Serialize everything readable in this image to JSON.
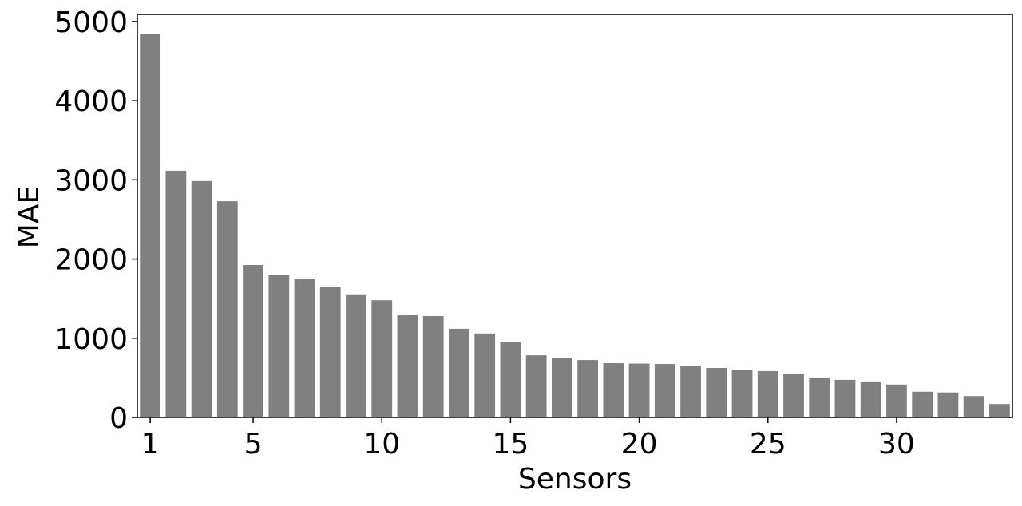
{
  "chart_data": {
    "type": "bar",
    "xlabel": "Sensors",
    "ylabel": "MAE",
    "x": [
      1,
      2,
      3,
      4,
      5,
      6,
      7,
      8,
      9,
      10,
      11,
      12,
      13,
      14,
      15,
      16,
      17,
      18,
      19,
      20,
      21,
      22,
      23,
      24,
      25,
      26,
      27,
      28,
      29,
      30,
      31,
      32,
      33,
      34
    ],
    "values": [
      4840,
      3115,
      2985,
      2730,
      1925,
      1795,
      1745,
      1645,
      1555,
      1480,
      1290,
      1280,
      1120,
      1060,
      950,
      785,
      755,
      725,
      685,
      680,
      675,
      655,
      625,
      605,
      585,
      555,
      505,
      475,
      445,
      415,
      325,
      315,
      270,
      170
    ],
    "color": "#808080",
    "xlim": [
      0.5,
      34.5
    ],
    "xticks": [
      1,
      5,
      10,
      15,
      20,
      25,
      30
    ],
    "ylim": [
      0,
      5090
    ],
    "yticks": [
      0,
      1000,
      2000,
      3000,
      4000,
      5000
    ]
  }
}
